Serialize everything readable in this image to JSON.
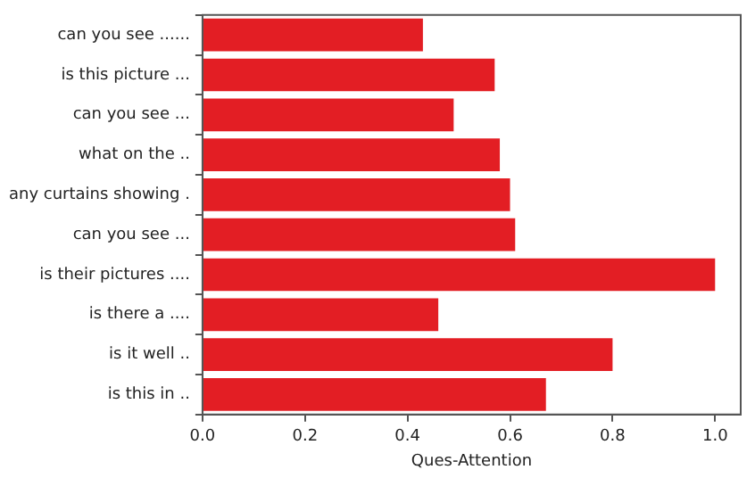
{
  "chart_data": {
    "type": "bar",
    "orientation": "horizontal",
    "xlabel": "Ques-Attention",
    "categories": [
      "can you see ......",
      "is this picture ...",
      "can you see ...",
      "what on the ..",
      "any curtains showing .",
      "can you see ...",
      "is their pictures ....",
      "is there a ....",
      "is it well ..",
      "is this in .."
    ],
    "values": [
      0.43,
      0.57,
      0.49,
      0.58,
      0.6,
      0.61,
      1.0,
      0.46,
      0.8,
      0.67
    ],
    "color": "#e31e24",
    "xlim": [
      0,
      1.05
    ],
    "xticks": [
      {
        "value": 0,
        "label": "0.0"
      },
      {
        "value": 0.2,
        "label": "0.2"
      },
      {
        "value": 0.4,
        "label": "0.4"
      },
      {
        "value": 0.6,
        "label": "0.6"
      },
      {
        "value": 0.8,
        "label": "0.8"
      },
      {
        "value": 1.0,
        "label": "1.0"
      }
    ],
    "grid": false,
    "legend": false
  }
}
